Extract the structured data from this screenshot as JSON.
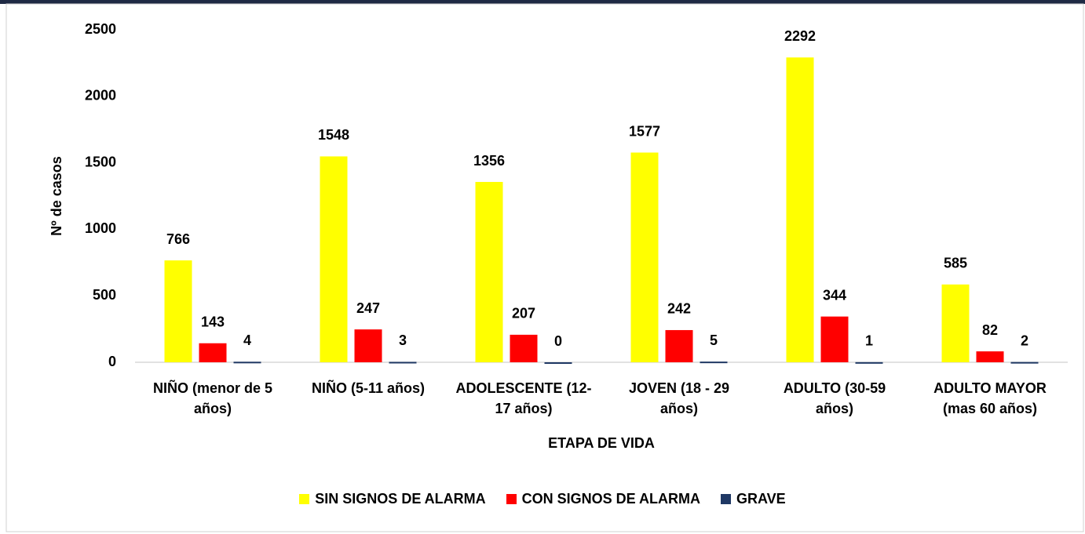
{
  "chart_data": {
    "type": "bar",
    "x_label": "ETAPA DE VIDA",
    "y_label": "Nº de casos",
    "categories": [
      "NIÑO (menor de 5 años)",
      "NIÑO (5-11 años)",
      "ADOLESCENTE (12-17 años)",
      "JOVEN (18 - 29 años)",
      "ADULTO (30-59 años)",
      "ADULTO MAYOR (mas 60 años)"
    ],
    "series": [
      {
        "name": "SIN SIGNOS DE ALARMA",
        "color": "#ffff00",
        "values": [
          766,
          1548,
          1356,
          1577,
          2292,
          585
        ]
      },
      {
        "name": "CON SIGNOS DE ALARMA",
        "color": "#ff0000",
        "values": [
          143,
          247,
          207,
          242,
          344,
          82
        ]
      },
      {
        "name": "GRAVE",
        "color": "#1f3864",
        "values": [
          4,
          3,
          0,
          5,
          1,
          2
        ]
      }
    ],
    "ylim": [
      0,
      2500
    ],
    "yticks": [
      0,
      500,
      1000,
      1500,
      2000,
      2500
    ],
    "grid": false,
    "legend": "bottom"
  }
}
